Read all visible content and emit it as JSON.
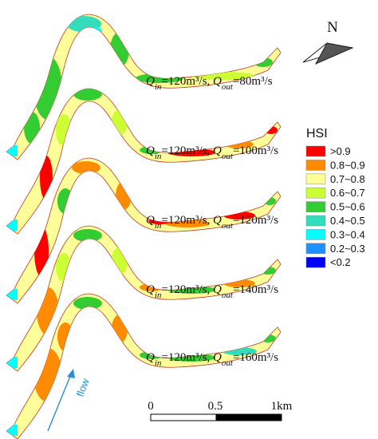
{
  "scenarios": [
    {
      "qin": "120",
      "qout": "80",
      "unit": "m³/s",
      "variant": 0
    },
    {
      "qin": "120",
      "qout": "100",
      "unit": "m³/s",
      "variant": 1
    },
    {
      "qin": "120",
      "qout": "120",
      "unit": "m³/s",
      "variant": 2
    },
    {
      "qin": "120",
      "qout": "140",
      "unit": "m³/s",
      "variant": 3
    },
    {
      "qin": "120",
      "qout": "160",
      "unit": "m³/s",
      "variant": 4
    }
  ],
  "legend": {
    "title": "HSI",
    "items": [
      {
        "label": ">0.9",
        "color": "#ff0000"
      },
      {
        "label": "0.8~0.9",
        "color": "#ff8c00"
      },
      {
        "label": "0.7~0.8",
        "color": "#ffff99"
      },
      {
        "label": "0.6~0.7",
        "color": "#ccff33"
      },
      {
        "label": "0.5~0.6",
        "color": "#33cc33"
      },
      {
        "label": "0.4~0.5",
        "color": "#33ddbb"
      },
      {
        "label": "0.3~0.4",
        "color": "#00ffff"
      },
      {
        "label": "0.2~0.3",
        "color": "#1e90ff"
      },
      {
        "label": "<0.2",
        "color": "#0000ff"
      }
    ]
  },
  "north": {
    "label": "N"
  },
  "scale_bar": {
    "ticks": [
      "0",
      "0.5",
      "1km"
    ]
  },
  "flow": {
    "label": "flow",
    "color": "#2a8fd6"
  }
}
